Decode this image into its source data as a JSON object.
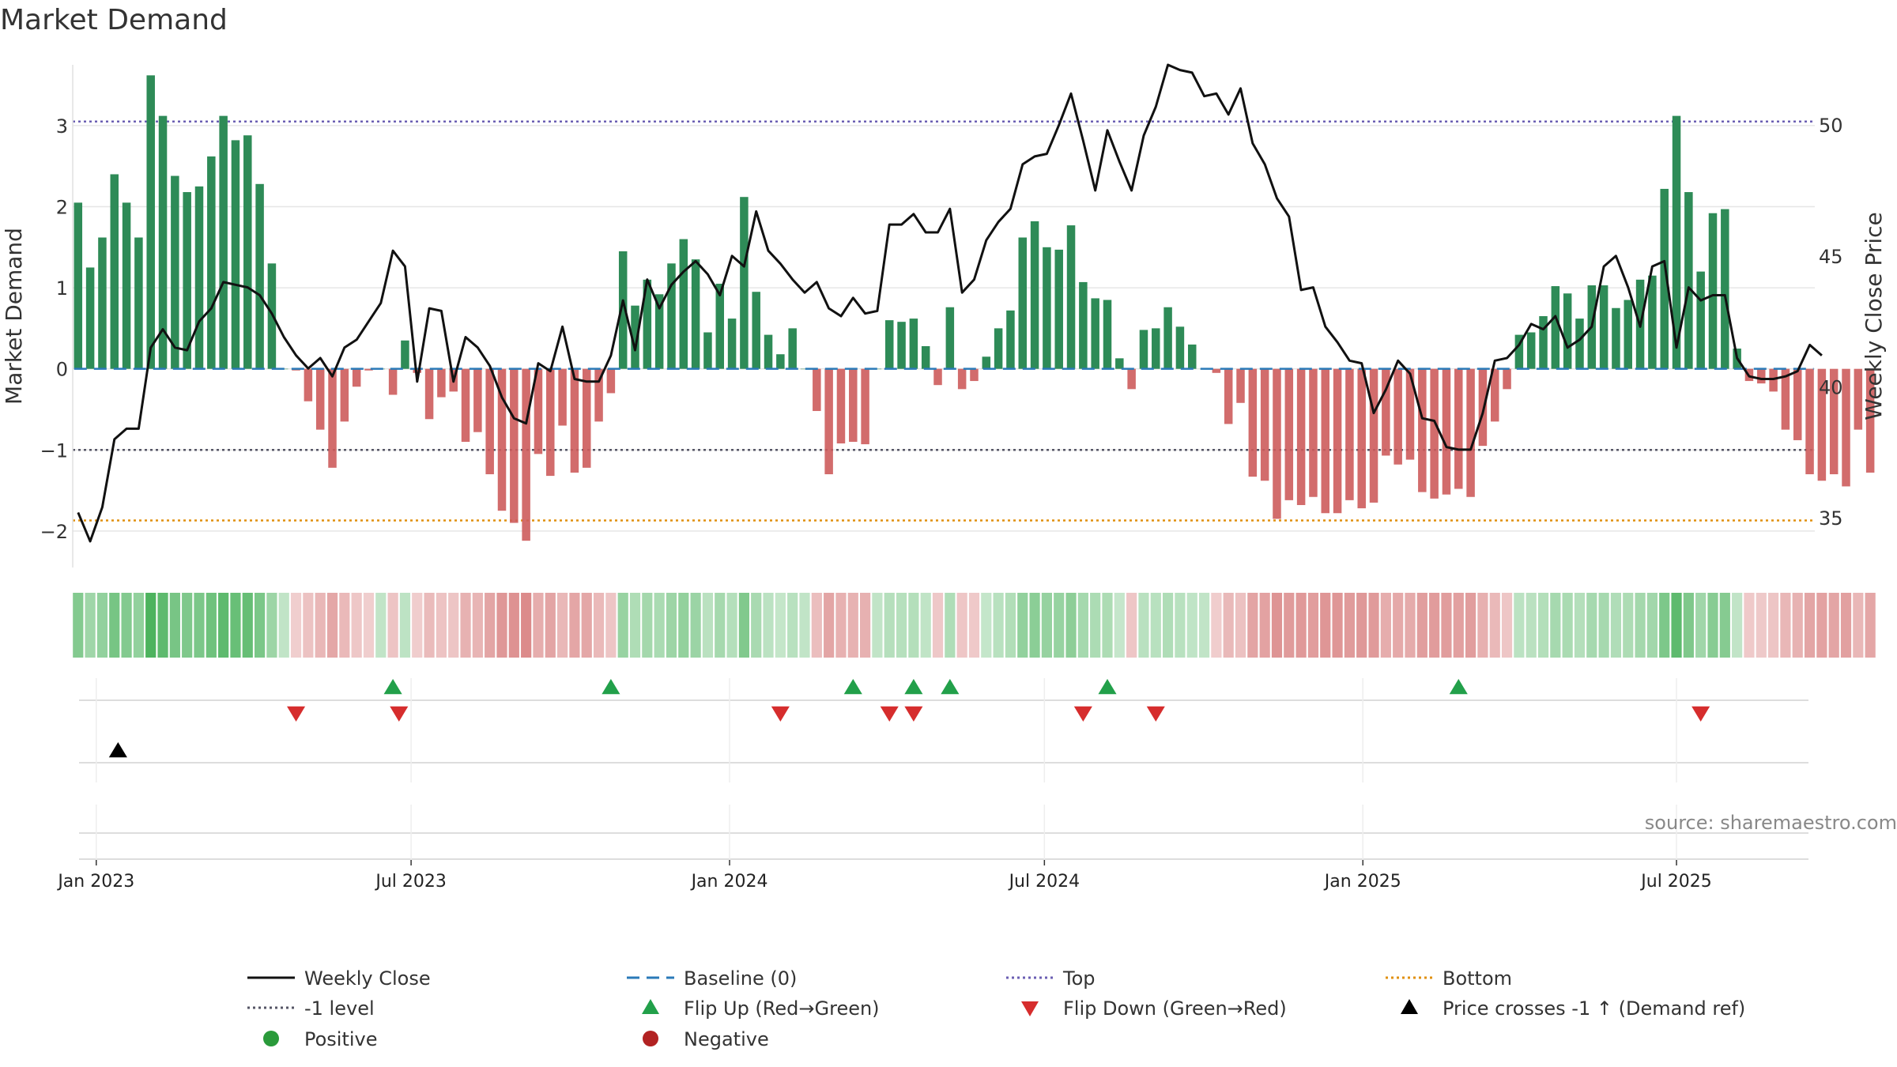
{
  "chart_data": {
    "type": "bar",
    "title": "Market Demand",
    "ylabel": "Market Demand",
    "y2label": "Weekly Close Price",
    "source": "source: sharemaestro.com",
    "ylim": [
      -2.45,
      3.75
    ],
    "y2lim": [
      33.1,
      52.3
    ],
    "yticks": [
      3,
      2,
      1,
      0,
      -1,
      -2
    ],
    "y2ticks": [
      50,
      45,
      40,
      35
    ],
    "xticks": [
      {
        "label": "Jan 2023",
        "week": 1.5
      },
      {
        "label": "Jul 2023",
        "week": 27.5
      },
      {
        "label": "Jan 2024",
        "week": 53.8
      },
      {
        "label": "Jul 2024",
        "week": 79.8
      },
      {
        "label": "Jan 2025",
        "week": 106.1
      },
      {
        "label": "Jul 2025",
        "week": 132
      }
    ],
    "weeks": 144,
    "levels": {
      "top": 3.05,
      "minus_one": -1.0,
      "bottom": -1.87,
      "baseline": 0
    },
    "demand": [
      2.05,
      1.25,
      1.62,
      2.4,
      2.05,
      1.62,
      3.62,
      3.12,
      2.38,
      2.18,
      2.25,
      2.62,
      3.12,
      2.82,
      2.88,
      2.28,
      1.3,
      0,
      -0.02,
      -0.4,
      -0.75,
      -1.22,
      -0.65,
      -0.22,
      -0.02,
      0,
      -0.32,
      0.35,
      -0.05,
      -0.62,
      -0.35,
      -0.28,
      -0.9,
      -0.78,
      -1.3,
      -1.75,
      -1.9,
      -2.12,
      -1.05,
      -1.32,
      -0.7,
      -1.28,
      -1.22,
      -0.65,
      -0.3,
      1.45,
      0.78,
      1.1,
      0.92,
      1.3,
      1.6,
      1.35,
      0.45,
      1.05,
      0.62,
      2.12,
      0.95,
      0.42,
      0.18,
      0.5,
      0,
      -0.52,
      -1.3,
      -0.92,
      -0.9,
      -0.93,
      0,
      0.6,
      0.58,
      0.62,
      0.28,
      -0.2,
      0.76,
      -0.25,
      -0.15,
      0.15,
      0.5,
      0.72,
      1.62,
      1.82,
      1.5,
      1.47,
      1.77,
      1.07,
      0.87,
      0.85,
      0.13,
      -0.25,
      0.48,
      0.5,
      0.76,
      0.52,
      0.3,
      0,
      -0.05,
      -0.68,
      -0.42,
      -1.33,
      -1.38,
      -1.85,
      -1.62,
      -1.68,
      -1.58,
      -1.78,
      -1.78,
      -1.62,
      -1.72,
      -1.65,
      -1.07,
      -1.18,
      -1.12,
      -1.52,
      -1.6,
      -1.55,
      -1.48,
      -1.58,
      -0.95,
      -0.65,
      -0.25,
      0.42,
      0.45,
      0.65,
      1.02,
      0.93,
      0.62,
      1.03,
      1.03,
      0.75,
      0.85,
      1.1,
      1.15,
      2.22,
      3.12,
      2.18,
      1.2,
      1.92,
      1.97,
      0.25,
      -0.15,
      -0.18,
      -0.28,
      -0.75,
      -0.88,
      -1.3,
      -1.38,
      -1.3,
      -1.45,
      -0.75,
      -1.28
    ],
    "close": [
      35.2,
      34.1,
      35.4,
      38.0,
      38.4,
      38.4,
      41.5,
      42.2,
      41.5,
      41.4,
      42.5,
      43.0,
      44.0,
      43.9,
      43.8,
      43.5,
      42.8,
      41.9,
      41.2,
      40.7,
      41.1,
      40.4,
      41.5,
      41.8,
      42.5,
      43.2,
      45.2,
      44.6,
      40.2,
      43.0,
      42.9,
      40.2,
      41.9,
      41.5,
      40.8,
      39.6,
      38.8,
      38.6,
      40.9,
      40.6,
      42.3,
      40.3,
      40.2,
      40.2,
      41.2,
      43.3,
      41.4,
      44.1,
      43.0,
      43.9,
      44.4,
      44.8,
      44.3,
      43.5,
      45.0,
      44.6,
      46.7,
      45.2,
      44.7,
      44.1,
      43.6,
      44.0,
      43.0,
      42.7,
      43.4,
      42.8,
      42.9,
      46.2,
      46.2,
      46.6,
      45.9,
      45.9,
      46.8,
      43.6,
      44.1,
      45.6,
      46.3,
      46.8,
      48.5,
      48.8,
      48.9,
      50.0,
      51.2,
      49.4,
      47.5,
      49.8,
      48.6,
      47.5,
      49.6,
      50.7,
      52.3,
      52.1,
      52.0,
      51.1,
      51.2,
      50.4,
      51.4,
      49.3,
      48.5,
      47.2,
      46.5,
      43.7,
      43.8,
      42.3,
      41.7,
      41.0,
      40.9,
      39.0,
      39.9,
      41.0,
      40.5,
      38.8,
      38.7,
      37.7,
      37.6,
      37.6,
      39.0,
      41.0,
      41.1,
      41.6,
      42.4,
      42.2,
      42.7,
      41.5,
      41.8,
      42.3,
      44.6,
      45.0,
      43.8,
      42.3,
      44.6,
      44.8,
      41.5,
      43.8,
      43.3,
      43.5,
      43.5,
      41.1,
      40.4,
      40.3,
      40.3,
      40.4,
      40.6,
      41.6,
      41.2
    ],
    "flip_up": [
      {
        "week": 26
      },
      {
        "week": 44
      },
      {
        "week": 64
      },
      {
        "week": 69
      },
      {
        "week": 72
      },
      {
        "week": 85
      },
      {
        "week": 114
      }
    ],
    "flip_down": [
      {
        "week": 18
      },
      {
        "week": 26.5
      },
      {
        "week": 58
      },
      {
        "week": 67
      },
      {
        "week": 69
      },
      {
        "week": 83
      },
      {
        "week": 89
      },
      {
        "week": 134
      }
    ],
    "price_cross": [
      {
        "week": 3.3
      }
    ],
    "legend": [
      {
        "label": "Weekly Close",
        "style": "line-black"
      },
      {
        "label": "Baseline (0)",
        "style": "dash-blue"
      },
      {
        "label": "Top",
        "style": "dot-purple"
      },
      {
        "label": "Bottom",
        "style": "dot-orange"
      },
      {
        "label": "-1 level",
        "style": "dot-gray"
      },
      {
        "label": "Flip Up (Red→Green)",
        "style": "tri-up-green"
      },
      {
        "label": "Flip Down (Green→Red)",
        "style": "tri-down-red"
      },
      {
        "label": "Price crosses -1 ↑ (Demand ref)",
        "style": "tri-up-black"
      },
      {
        "label": "Positive",
        "style": "dot-green"
      },
      {
        "label": "Negative",
        "style": "dot-red"
      }
    ],
    "colors": {
      "positive_bar": "#2e8b57",
      "negative_bar": "#cd5c5c",
      "close_line": "#111111",
      "baseline": "#2a7ab8",
      "top": "#6b5fb3",
      "bottom": "#e0900f",
      "minus_one": "#555566",
      "flip_up": "#22a04a",
      "flip_down": "#d62d2d",
      "price_cross": "#000000",
      "positive_dot": "#2a9a3a",
      "negative_dot": "#b22222",
      "grid": "#e6e6e6",
      "source": "#888888"
    }
  }
}
